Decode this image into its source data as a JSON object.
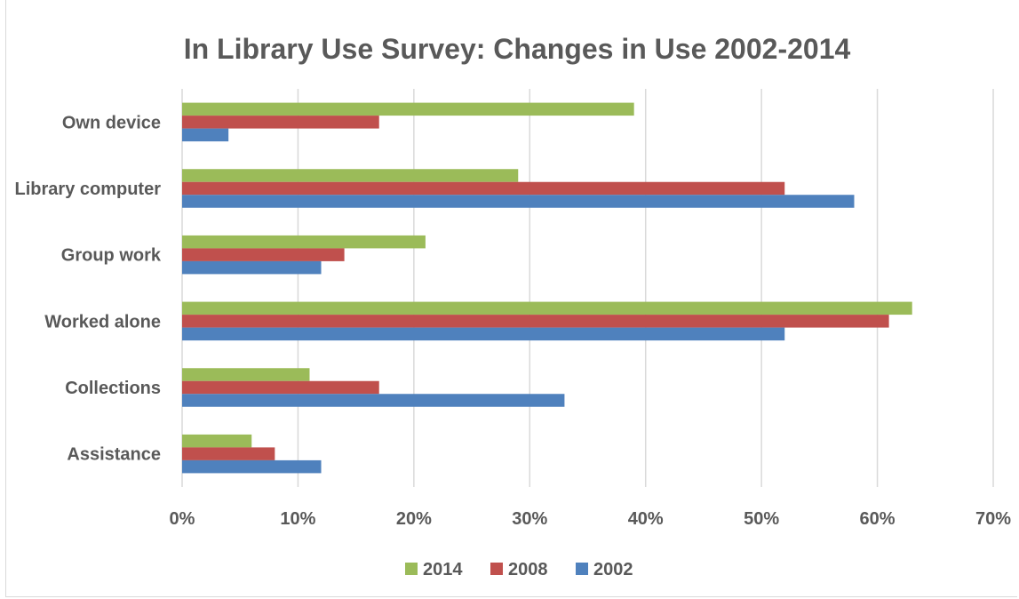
{
  "chart_data": {
    "type": "bar",
    "orientation": "horizontal",
    "title": "In Library Use Survey:  Changes in Use 2002-2014",
    "categories": [
      "Own device",
      "Library computer",
      "Group work",
      "Worked alone",
      "Collections",
      "Assistance"
    ],
    "series": [
      {
        "name": "2014",
        "color": "#9bbb59",
        "values": [
          39,
          29,
          21,
          63,
          11,
          6
        ]
      },
      {
        "name": "2008",
        "color": "#c0504d",
        "values": [
          17,
          52,
          14,
          61,
          17,
          8
        ]
      },
      {
        "name": "2002",
        "color": "#4f81bd",
        "values": [
          4,
          58,
          12,
          52,
          33,
          12
        ]
      }
    ],
    "xlim": [
      0,
      70
    ],
    "x_ticks": [
      "0%",
      "10%",
      "20%",
      "30%",
      "40%",
      "50%",
      "60%",
      "70%"
    ],
    "grid": "vertical",
    "legend": "bottom"
  }
}
